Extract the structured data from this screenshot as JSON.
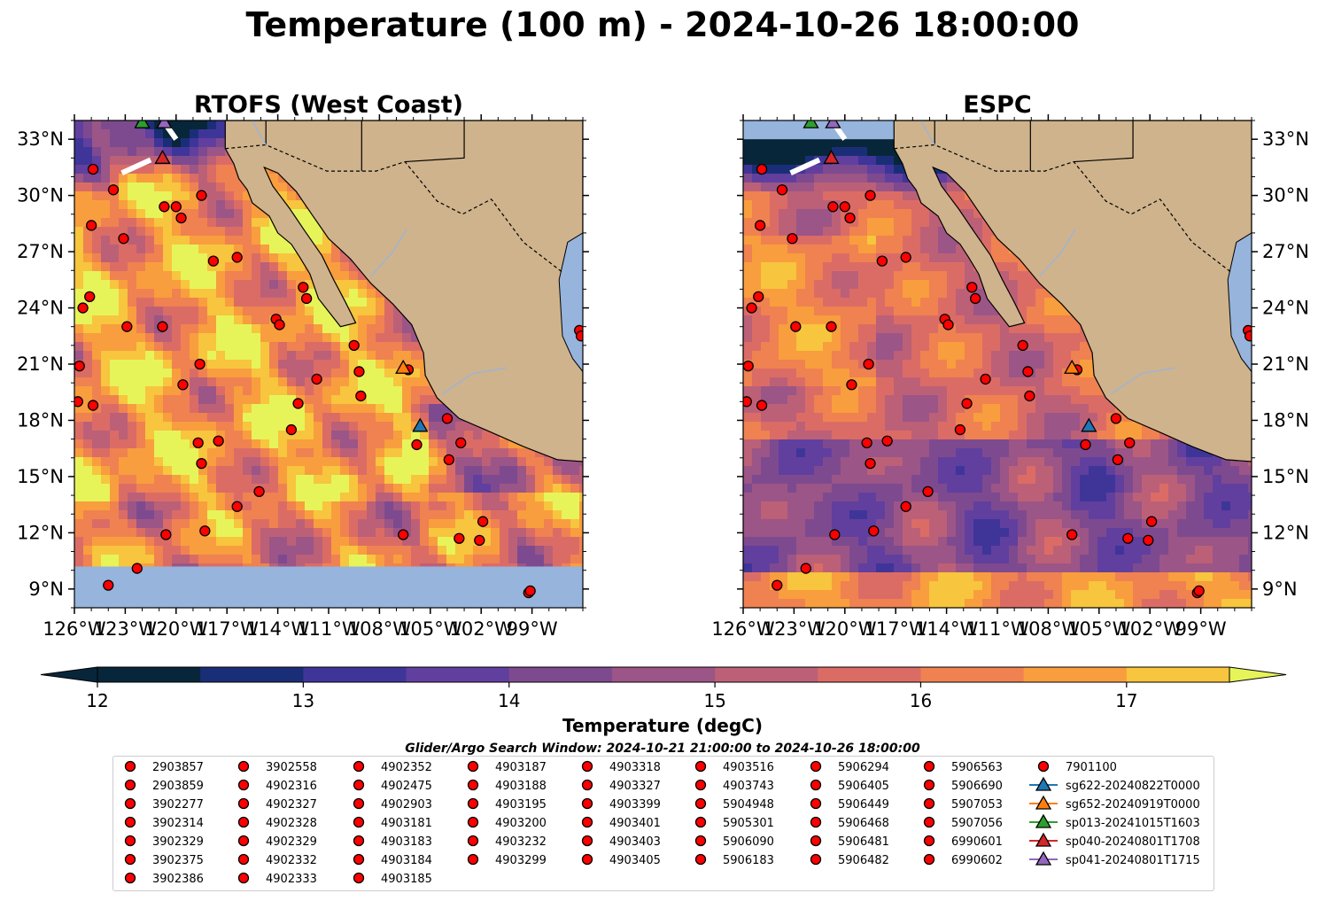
{
  "title": "Temperature (100 m) - 2024-10-26 18:00:00",
  "colors": {
    "land": "#cfb38c",
    "ocean_mask": "#96b4dc",
    "coast": "#000000",
    "river": "#9cb4d8",
    "marker_argo": "#ff0000",
    "background": "#ffffff"
  },
  "chart_data": {
    "type": "contourf-map",
    "panels": [
      {
        "id": "rtofs",
        "title": "RTOFS (West Coast)",
        "ytick_side": "left"
      },
      {
        "id": "espc",
        "title": "ESPC",
        "ytick_side": "right"
      }
    ],
    "lon_range": [
      -126,
      -96
    ],
    "lat_range": [
      8,
      34
    ],
    "xticks": [
      {
        "value": -126,
        "label": "126°W"
      },
      {
        "value": -123,
        "label": "123°W"
      },
      {
        "value": -120,
        "label": "120°W"
      },
      {
        "value": -117,
        "label": "117°W"
      },
      {
        "value": -114,
        "label": "114°W"
      },
      {
        "value": -111,
        "label": "111°W"
      },
      {
        "value": -108,
        "label": "108°W"
      },
      {
        "value": -105,
        "label": "105°W"
      },
      {
        "value": -102,
        "label": "102°W"
      },
      {
        "value": -99,
        "label": "99°W"
      }
    ],
    "yticks": [
      {
        "value": 9,
        "label": "9°N"
      },
      {
        "value": 12,
        "label": "12°N"
      },
      {
        "value": 15,
        "label": "15°N"
      },
      {
        "value": 18,
        "label": "18°N"
      },
      {
        "value": 21,
        "label": "21°N"
      },
      {
        "value": 24,
        "label": "24°N"
      },
      {
        "value": 27,
        "label": "27°N"
      },
      {
        "value": 30,
        "label": "30°N"
      },
      {
        "value": 33,
        "label": "33°N"
      }
    ],
    "colorbar": {
      "label": "Temperature (degC)",
      "min": 12,
      "max": 17.5,
      "step": 0.5,
      "extend": "both",
      "ticks": [
        12,
        13,
        14,
        15,
        16,
        17
      ],
      "colors": [
        "#08263a",
        "#1a2e78",
        "#3f3599",
        "#613f9e",
        "#7e4a8f",
        "#9b5587",
        "#bc6078",
        "#db6c65",
        "#ef8250",
        "#f89e3e",
        "#f7c53e",
        "#e6f45a"
      ]
    },
    "argo_points": [
      {
        "lon": -124.9,
        "lat": 31.4
      },
      {
        "lon": -123.7,
        "lat": 30.3
      },
      {
        "lon": -120.7,
        "lat": 29.4
      },
      {
        "lon": -120.0,
        "lat": 29.4
      },
      {
        "lon": -119.7,
        "lat": 28.8
      },
      {
        "lon": -118.5,
        "lat": 30.0
      },
      {
        "lon": -125.0,
        "lat": 28.4
      },
      {
        "lon": -123.1,
        "lat": 27.7
      },
      {
        "lon": -117.8,
        "lat": 26.5
      },
      {
        "lon": -116.4,
        "lat": 26.7
      },
      {
        "lon": -112.5,
        "lat": 25.1
      },
      {
        "lon": -112.3,
        "lat": 24.5
      },
      {
        "lon": -114.1,
        "lat": 23.4
      },
      {
        "lon": -113.9,
        "lat": 23.1
      },
      {
        "lon": -125.1,
        "lat": 24.6
      },
      {
        "lon": -125.5,
        "lat": 24.0
      },
      {
        "lon": -122.9,
        "lat": 23.0
      },
      {
        "lon": -120.8,
        "lat": 23.0
      },
      {
        "lon": -125.7,
        "lat": 20.9
      },
      {
        "lon": -118.6,
        "lat": 21.0
      },
      {
        "lon": -119.6,
        "lat": 19.9
      },
      {
        "lon": -109.5,
        "lat": 22.0
      },
      {
        "lon": -109.2,
        "lat": 20.6
      },
      {
        "lon": -109.1,
        "lat": 19.3
      },
      {
        "lon": -111.7,
        "lat": 20.2
      },
      {
        "lon": -112.8,
        "lat": 18.9
      },
      {
        "lon": -113.2,
        "lat": 17.5
      },
      {
        "lon": -125.8,
        "lat": 19.0
      },
      {
        "lon": -124.9,
        "lat": 18.8
      },
      {
        "lon": -118.7,
        "lat": 16.8
      },
      {
        "lon": -117.5,
        "lat": 16.9
      },
      {
        "lon": -118.5,
        "lat": 15.7
      },
      {
        "lon": -116.4,
        "lat": 13.4
      },
      {
        "lon": -115.1,
        "lat": 14.2
      },
      {
        "lon": -118.3,
        "lat": 12.1
      },
      {
        "lon": -120.6,
        "lat": 11.9
      },
      {
        "lon": -122.3,
        "lat": 10.1
      },
      {
        "lon": -124.0,
        "lat": 9.2
      },
      {
        "lon": -106.3,
        "lat": 20.7
      },
      {
        "lon": -104.0,
        "lat": 18.1
      },
      {
        "lon": -105.8,
        "lat": 16.7
      },
      {
        "lon": -103.2,
        "lat": 16.8
      },
      {
        "lon": -103.9,
        "lat": 15.9
      },
      {
        "lon": -101.9,
        "lat": 12.6
      },
      {
        "lon": -102.1,
        "lat": 11.6
      },
      {
        "lon": -103.3,
        "lat": 11.7
      },
      {
        "lon": -106.6,
        "lat": 11.9
      },
      {
        "lon": -99.2,
        "lat": 8.8
      },
      {
        "lon": -99.1,
        "lat": 8.9
      },
      {
        "lon": -96.2,
        "lat": 22.8
      },
      {
        "lon": -96.1,
        "lat": 22.5
      }
    ],
    "glider_points": [
      {
        "name": "sg622-20240822T0000",
        "color": "#1f77b4",
        "lon": -105.6,
        "lat": 17.7
      },
      {
        "name": "sg652-20240919T0000",
        "color": "#ff7f0e",
        "lon": -106.6,
        "lat": 20.8
      },
      {
        "name": "sp013-20241015T1603",
        "color": "#2ca02c",
        "lon": -122.0,
        "lat": 33.9
      },
      {
        "name": "sp040-20240801T1708",
        "color": "#d62728",
        "lon": -120.8,
        "lat": 32.0
      },
      {
        "name": "sp041-20240801T1715",
        "color": "#9467bd",
        "lon": -120.7,
        "lat": 33.9
      }
    ]
  },
  "legend": {
    "title": "Glider/Argo Search Window: 2024-10-21 21:00:00 to 2024-10-26 18:00:00",
    "columns": [
      [
        "2903857",
        "2903859",
        "3902277",
        "3902314",
        "3902329",
        "3902375",
        "3902386"
      ],
      [
        "3902558",
        "4902316",
        "4902327",
        "4902328",
        "4902329",
        "4902332",
        "4902333"
      ],
      [
        "4902352",
        "4902475",
        "4902903",
        "4903181",
        "4903183",
        "4903184",
        "4903185"
      ],
      [
        "4903187",
        "4903188",
        "4903195",
        "4903200",
        "4903232",
        "4903299"
      ],
      [
        "4903318",
        "4903327",
        "4903399",
        "4903401",
        "4903403",
        "4903405"
      ],
      [
        "4903516",
        "4903743",
        "5904948",
        "5905301",
        "5906090",
        "5906183"
      ],
      [
        "5906294",
        "5906405",
        "5906449",
        "5906468",
        "5906481",
        "5906482"
      ],
      [
        "5906563",
        "5906690",
        "5907053",
        "5907056",
        "6990601",
        "6990602"
      ],
      [
        "7901100"
      ]
    ],
    "gliders": [
      "sg622-20240822T0000",
      "sg652-20240919T0000",
      "sp013-20241015T1603",
      "sp040-20240801T1708",
      "sp041-20240801T1715"
    ]
  }
}
